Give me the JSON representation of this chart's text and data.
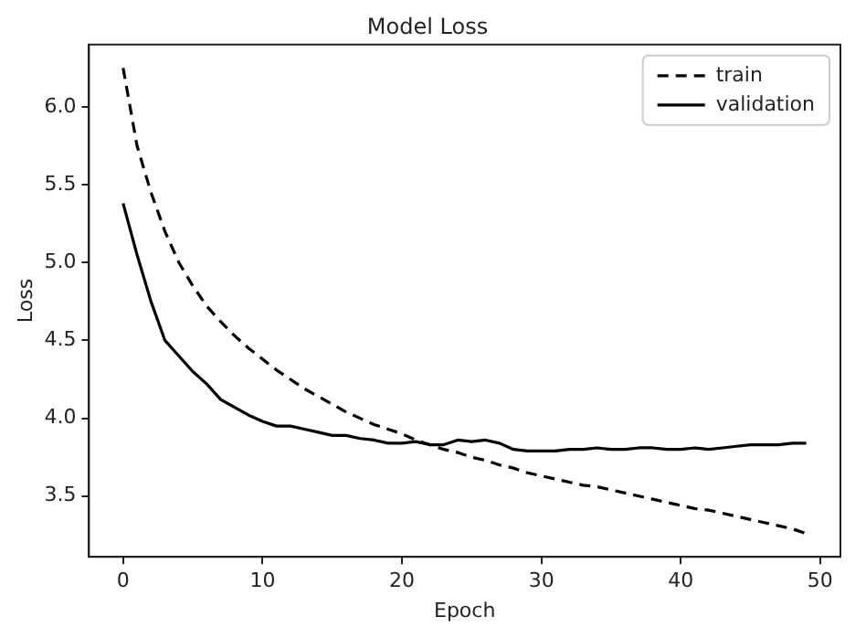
{
  "chart_data": {
    "type": "line",
    "title": "Model Loss",
    "xlabel": "Epoch",
    "ylabel": "Loss",
    "x": [
      0,
      1,
      2,
      3,
      4,
      5,
      6,
      7,
      8,
      9,
      10,
      11,
      12,
      13,
      14,
      15,
      16,
      17,
      18,
      19,
      20,
      21,
      22,
      23,
      24,
      25,
      26,
      27,
      28,
      29,
      30,
      31,
      32,
      33,
      34,
      35,
      36,
      37,
      38,
      39,
      40,
      41,
      42,
      43,
      44,
      45,
      46,
      47,
      48,
      49
    ],
    "series": [
      {
        "name": "train",
        "color": "#000000",
        "line_style": "dashed",
        "values": [
          6.25,
          5.75,
          5.45,
          5.2,
          5.0,
          4.85,
          4.72,
          4.62,
          4.53,
          4.45,
          4.38,
          4.31,
          4.25,
          4.19,
          4.14,
          4.09,
          4.04,
          4.0,
          3.96,
          3.93,
          3.9,
          3.86,
          3.83,
          3.8,
          3.78,
          3.75,
          3.73,
          3.7,
          3.68,
          3.65,
          3.63,
          3.61,
          3.59,
          3.57,
          3.56,
          3.54,
          3.52,
          3.5,
          3.48,
          3.46,
          3.44,
          3.42,
          3.41,
          3.39,
          3.37,
          3.35,
          3.33,
          3.31,
          3.29,
          3.26
        ]
      },
      {
        "name": "validation",
        "color": "#000000",
        "line_style": "solid",
        "values": [
          5.38,
          5.05,
          4.75,
          4.5,
          4.4,
          4.3,
          4.22,
          4.12,
          4.07,
          4.02,
          3.98,
          3.95,
          3.95,
          3.93,
          3.91,
          3.89,
          3.89,
          3.87,
          3.86,
          3.84,
          3.84,
          3.85,
          3.83,
          3.83,
          3.86,
          3.85,
          3.86,
          3.84,
          3.8,
          3.79,
          3.79,
          3.79,
          3.8,
          3.8,
          3.81,
          3.8,
          3.8,
          3.81,
          3.81,
          3.8,
          3.8,
          3.81,
          3.8,
          3.81,
          3.82,
          3.83,
          3.83,
          3.83,
          3.84,
          3.84
        ]
      }
    ],
    "xlim": [
      -2.45,
      51.45
    ],
    "xticks": [
      0,
      10,
      20,
      30,
      40,
      50
    ],
    "ylim": [
      3.11,
      6.4
    ],
    "yticks": [
      {
        "value": 3.5,
        "label": "3.5"
      },
      {
        "value": 4.0,
        "label": "4.0"
      },
      {
        "value": 4.5,
        "label": "4.5"
      },
      {
        "value": 5.0,
        "label": "5.0"
      },
      {
        "value": 5.5,
        "label": "5.5"
      },
      {
        "value": 6.0,
        "label": "6.0"
      }
    ],
    "grid": false,
    "legend": "top right",
    "marker": "none"
  }
}
